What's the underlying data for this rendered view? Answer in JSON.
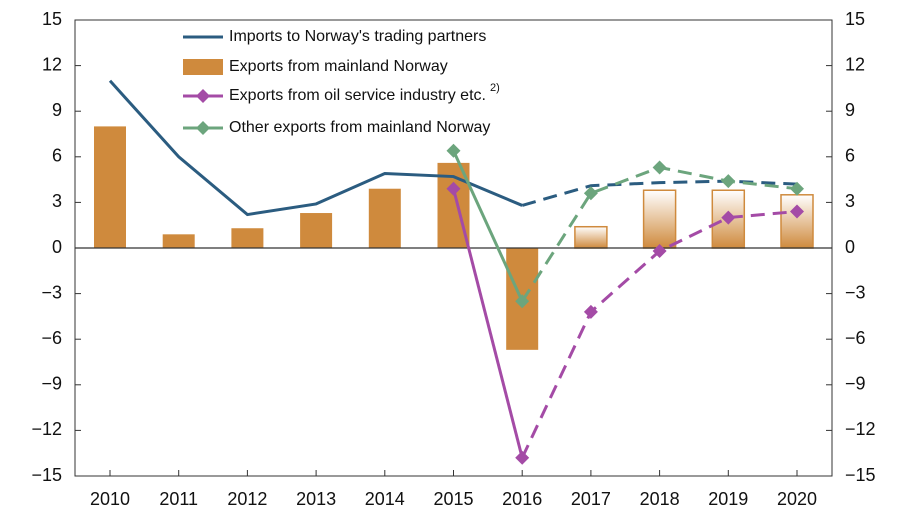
{
  "chart_data": {
    "type": "bar-line",
    "categories": [
      "2010",
      "2011",
      "2012",
      "2013",
      "2014",
      "2015",
      "2016",
      "2017",
      "2018",
      "2019",
      "2020"
    ],
    "dashed_from": "2016",
    "series": [
      {
        "name": "Imports to Norway's trading partners",
        "kind": "line",
        "color": "#2b5c80",
        "values": [
          11.0,
          6.0,
          2.2,
          2.9,
          4.9,
          4.7,
          2.8,
          4.1,
          4.3,
          4.4,
          4.2
        ]
      },
      {
        "name": "Exports from mainland Norway",
        "kind": "bar",
        "color": "#cf8a3d",
        "values": [
          8.0,
          0.9,
          1.3,
          2.3,
          3.9,
          5.6,
          -6.7,
          1.4,
          3.8,
          3.8,
          3.5
        ]
      },
      {
        "name": "Exports from oil service industry etc.",
        "note": "2)",
        "kind": "line",
        "marker": "diamond",
        "color": "#a44ba6",
        "values": [
          null,
          null,
          null,
          null,
          null,
          3.9,
          -13.8,
          -4.2,
          -0.2,
          2.0,
          2.4
        ]
      },
      {
        "name": "Other exports from mainland Norway",
        "kind": "line",
        "marker": "diamond",
        "color": "#6ca57d",
        "values": [
          null,
          null,
          null,
          null,
          null,
          6.4,
          -3.5,
          3.6,
          5.3,
          4.4,
          3.9
        ]
      }
    ],
    "ylim": [
      -15,
      15
    ],
    "yticks": [
      {
        "value": -15,
        "label": "−15"
      },
      {
        "value": -12,
        "label": "−12"
      },
      {
        "value": -9,
        "label": "−9"
      },
      {
        "value": -6,
        "label": "−6"
      },
      {
        "value": -3,
        "label": "−3"
      },
      0,
      3,
      6,
      9,
      12,
      15
    ],
    "y2lim": [
      -15,
      15
    ],
    "y2ticks": [
      {
        "value": -15,
        "label": "−15"
      },
      {
        "value": -12,
        "label": "−12"
      },
      {
        "value": -9,
        "label": "−9"
      },
      {
        "value": -6,
        "label": "−6"
      },
      {
        "value": -3,
        "label": "−3"
      },
      0,
      3,
      6,
      9,
      12,
      15
    ]
  }
}
